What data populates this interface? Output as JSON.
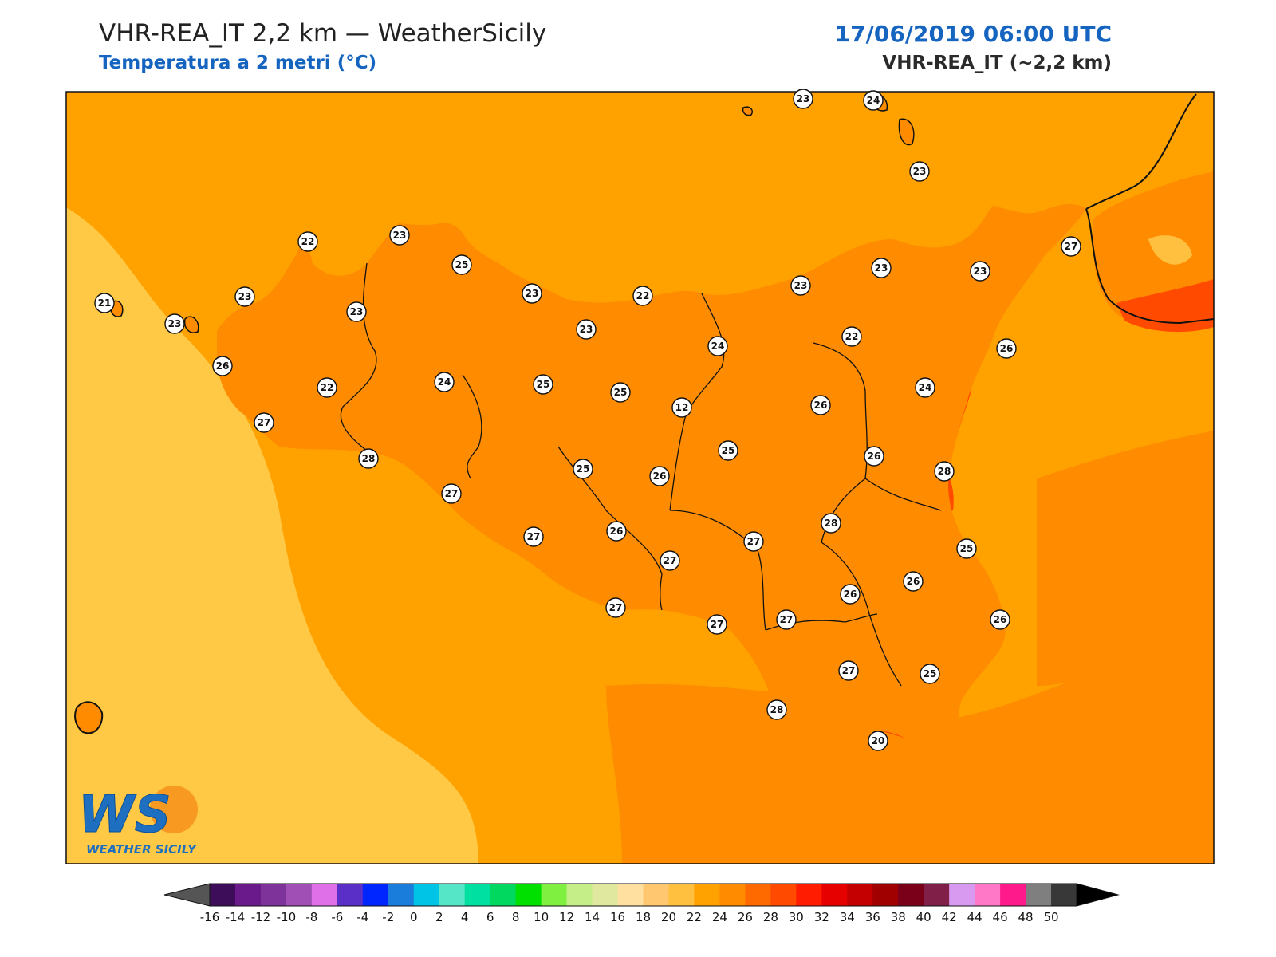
{
  "header": {
    "title": "VHR-REA_IT 2,2 km — WeatherSicily",
    "subtitle": "Temperatura a 2 metri (°C)",
    "datetime": "17/06/2019 06:00 UTC",
    "model": "VHR-REA_IT (~2,2 km)"
  },
  "logo": {
    "big": "WS",
    "small": "WEATHER SICILY"
  },
  "colors": {
    "sea_light": "#ffc845",
    "sea": "#ffa200",
    "land_base": "#ff8c00",
    "hot": "#ff5a00",
    "cool_land": "#ffb733",
    "coast": "#111111"
  },
  "colorbar": {
    "ticks": [
      "-16",
      "-14",
      "-12",
      "-10",
      "-8",
      "-6",
      "-4",
      "-2",
      "0",
      "2",
      "4",
      "6",
      "8",
      "10",
      "12",
      "14",
      "16",
      "18",
      "20",
      "22",
      "24",
      "26",
      "28",
      "30",
      "32",
      "34",
      "36",
      "38",
      "40",
      "42",
      "44",
      "46",
      "48",
      "50"
    ],
    "colors": [
      "#3d0d5a",
      "#6a1a8a",
      "#7d3399",
      "#a050b4",
      "#e070e8",
      "#5a2fc8",
      "#0026ff",
      "#1a7ddb",
      "#00c4e6",
      "#55e6c8",
      "#00e0a0",
      "#00d860",
      "#00e000",
      "#80f040",
      "#c6ee88",
      "#e0e8a0",
      "#ffe0a0",
      "#ffc870",
      "#ffc040",
      "#ffa200",
      "#ff8c00",
      "#ff6a00",
      "#ff4a00",
      "#ff1c00",
      "#e60000",
      "#c40000",
      "#a00000",
      "#7a001a",
      "#801f48",
      "#d89af0",
      "#ff78c8",
      "#ff1a8c",
      "#7f7f7f",
      "#383838"
    ]
  },
  "stations": [
    {
      "v": "23"
    },
    {
      "v": "24"
    },
    {
      "v": "23"
    },
    {
      "v": "22"
    },
    {
      "v": "23"
    },
    {
      "v": "25"
    },
    {
      "v": "27"
    },
    {
      "v": "21"
    },
    {
      "v": "23"
    },
    {
      "v": "23"
    },
    {
      "v": "23"
    },
    {
      "v": "22"
    },
    {
      "v": "23"
    },
    {
      "v": "23"
    },
    {
      "v": "23"
    },
    {
      "v": "23"
    },
    {
      "v": "22"
    },
    {
      "v": "26"
    },
    {
      "v": "23"
    },
    {
      "v": "24"
    },
    {
      "v": "26"
    },
    {
      "v": "22"
    },
    {
      "v": "24"
    },
    {
      "v": "25"
    },
    {
      "v": "25"
    },
    {
      "v": "12"
    },
    {
      "v": "24"
    },
    {
      "v": "27"
    },
    {
      "v": "26"
    },
    {
      "v": "25"
    },
    {
      "v": "26"
    },
    {
      "v": "25"
    },
    {
      "v": "26"
    },
    {
      "v": "28"
    },
    {
      "v": "28"
    },
    {
      "v": "27"
    },
    {
      "v": "28"
    },
    {
      "v": "27"
    },
    {
      "v": "26"
    },
    {
      "v": "27"
    },
    {
      "v": "27"
    },
    {
      "v": "25"
    },
    {
      "v": "26"
    },
    {
      "v": "26"
    },
    {
      "v": "27"
    },
    {
      "v": "27"
    },
    {
      "v": "27"
    },
    {
      "v": "26"
    },
    {
      "v": "27"
    },
    {
      "v": "25"
    },
    {
      "v": "28"
    },
    {
      "v": "20"
    }
  ]
}
